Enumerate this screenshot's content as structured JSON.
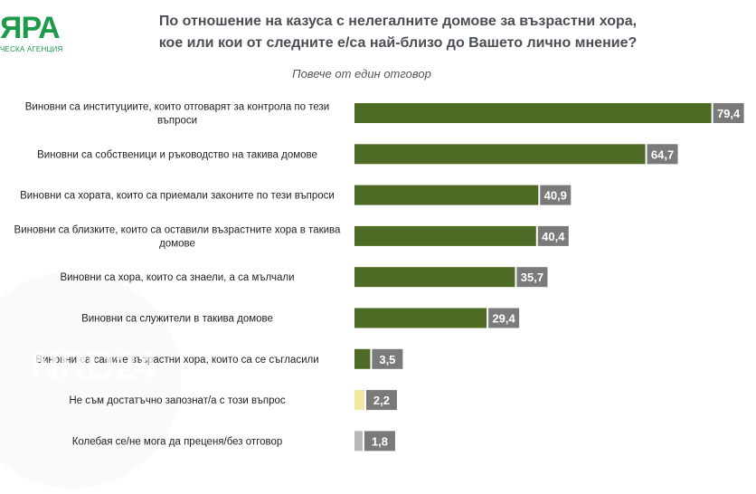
{
  "logo": {
    "mark": "ЯРА",
    "sub": "ЧЕСКА АГЕНЦИЯ"
  },
  "watermark": "NRD24",
  "colors": {
    "main": "#4e6b25",
    "value_box": "#7a7a7a",
    "not_aware": "#f2e7a3",
    "hesitant": "#b8b8b8"
  },
  "chart_data": {
    "type": "bar",
    "orientation": "horizontal",
    "title_lines": [
      "По отношение на казуса с нелегалните домове за възрастни хора,",
      "кое или кои от следните е/са най-близо до Вашето лично мнение?"
    ],
    "subtitle": "Повече от един отговор",
    "categories": [
      "Виновни са институциите, които отговарят за контрола по тези въпроси",
      "Виновни са собственици и ръководство на такива домове",
      "Виновни са хората, които са приемали законите по тези въпроси",
      "Виновни са близките, които са оставили възрастните хора в такива домове",
      "Виновни са хора, които са знаели, а са мълчали",
      "Виновни са служители в такива домове",
      "Виновни са самите възрастни хора, които са се съгласили",
      "Не съм достатъчно запознат/а с този въпрос",
      "Колебая се/не мога да преценя/без отговор"
    ],
    "category_lines": [
      [
        "Виновни са институциите, които отговарят за контрола по тези",
        "въпроси"
      ],
      [
        "Виновни са собственици и ръководство на такива домове"
      ],
      [
        "Виновни са хората, които са приемали законите по тези въпроси"
      ],
      [
        "Виновни са близките, които са оставили възрастните хора в такива",
        "домове"
      ],
      [
        "Виновни са хора, които са знаели, а са мълчали"
      ],
      [
        "Виновни са служители в такива домове"
      ],
      [
        "Виновни са самите възрастни хора, които са се съгласили"
      ],
      [
        "Не съм достатъчно запознат/а с този въпрос"
      ],
      [
        "Колебая се/не мога да преценя/без отговор"
      ]
    ],
    "values": [
      79.4,
      64.7,
      40.9,
      40.4,
      35.7,
      29.4,
      3.5,
      2.2,
      1.8
    ],
    "value_labels": [
      "79,4",
      "64,7",
      "40,9",
      "40,4",
      "35,7",
      "29,4",
      "3,5",
      "2,2",
      "1,8"
    ],
    "bar_colors": [
      "#4e6b25",
      "#4e6b25",
      "#4e6b25",
      "#4e6b25",
      "#4e6b25",
      "#4e6b25",
      "#4e6b25",
      "#f2e7a3",
      "#b8b8b8"
    ],
    "xlim": [
      0,
      100
    ],
    "unit": "%"
  }
}
